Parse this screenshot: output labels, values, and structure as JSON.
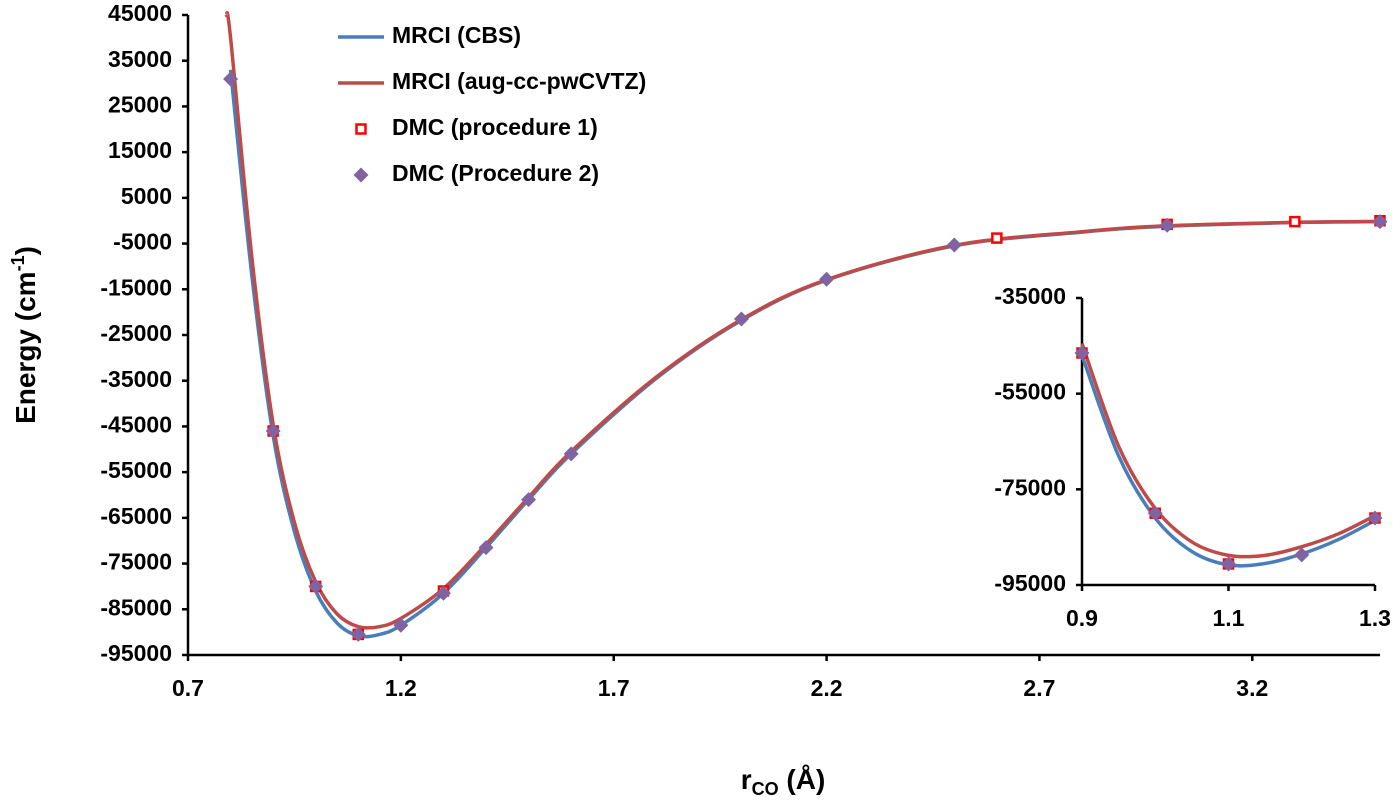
{
  "chart_data": [
    {
      "type": "line",
      "y_label": [
        "Energy (cm",
        "-1",
        ")"
      ],
      "x_label": [
        "r",
        "CO",
        " (Å)"
      ],
      "xlim": [
        0.7,
        3.5
      ],
      "xticks": [
        0.7,
        1.2,
        1.7,
        2.2,
        2.7,
        3.2
      ],
      "ylim": [
        -95000,
        45000
      ],
      "yticks": [
        45000,
        35000,
        25000,
        15000,
        5000,
        -5000,
        -15000,
        -25000,
        -35000,
        -45000,
        -55000,
        -65000,
        -75000,
        -85000,
        -95000
      ],
      "grid": false,
      "legend": "top-left",
      "series": [
        {
          "name": "MRCI (CBS)",
          "color": "#4a7ebb",
          "marker": "line",
          "x": [
            0.8,
            0.85,
            0.9,
            0.95,
            1.0,
            1.05,
            1.1,
            1.15,
            1.2,
            1.3,
            1.4,
            1.5,
            1.6,
            1.8,
            2.0,
            2.2,
            2.5,
            2.8,
            3.0,
            3.3,
            3.5
          ],
          "values": [
            33000,
            -12000,
            -47000,
            -68000,
            -81000,
            -88000,
            -90800,
            -90500,
            -88500,
            -81500,
            -71500,
            -61000,
            -51000,
            -34500,
            -21800,
            -13000,
            -5500,
            -2500,
            -1200,
            -400,
            -200
          ]
        },
        {
          "name": "MRCI (aug-cc-pwCVTZ)",
          "color": "#be4b48",
          "marker": "line",
          "x": [
            0.79,
            0.8,
            0.85,
            0.9,
            0.95,
            1.0,
            1.05,
            1.1,
            1.15,
            1.2,
            1.3,
            1.4,
            1.5,
            1.6,
            1.8,
            2.0,
            2.2,
            2.5,
            2.8,
            3.0,
            3.3,
            3.5
          ],
          "values": [
            45000,
            40000,
            -8000,
            -44500,
            -66000,
            -79000,
            -86000,
            -88800,
            -88800,
            -87000,
            -80500,
            -70800,
            -60500,
            -50500,
            -34200,
            -21600,
            -12900,
            -5400,
            -2400,
            -1100,
            -350,
            -150
          ]
        },
        {
          "name": "DMC (procedure 1)",
          "color": "#ff0000",
          "marker": "square",
          "x": [
            0.9,
            1.0,
            1.1,
            1.3,
            2.6,
            3.0,
            3.3,
            3.5
          ],
          "values": [
            -46000,
            -80000,
            -90500,
            -81000,
            -3800,
            -800,
            -200,
            0
          ]
        },
        {
          "name": "DMC (Procedure 2)",
          "color": "#8064a2",
          "marker": "diamond",
          "x": [
            0.8,
            0.9,
            1.0,
            1.1,
            1.2,
            1.3,
            1.4,
            1.5,
            1.6,
            2.0,
            2.2,
            2.5,
            3.0,
            3.5
          ],
          "values": [
            31000,
            -46000,
            -80000,
            -90500,
            -88500,
            -81500,
            -71500,
            -61000,
            -51000,
            -21500,
            -12800,
            -5300,
            -1000,
            -200
          ]
        }
      ]
    },
    {
      "type": "line",
      "xlim": [
        0.9,
        1.3
      ],
      "xticks": [
        0.9,
        1.1,
        1.3
      ],
      "ylim": [
        -95000,
        -35000
      ],
      "yticks": [
        -35000,
        -55000,
        -75000,
        -95000
      ],
      "grid": false,
      "series": [
        {
          "color": "#4a7ebb",
          "marker": "line",
          "x": [
            0.9,
            0.95,
            1.0,
            1.05,
            1.1,
            1.15,
            1.2,
            1.25,
            1.3
          ],
          "values": [
            -47000,
            -68000,
            -81000,
            -88000,
            -90800,
            -90500,
            -88500,
            -85500,
            -81500
          ]
        },
        {
          "color": "#be4b48",
          "marker": "line",
          "x": [
            0.9,
            0.95,
            1.0,
            1.05,
            1.1,
            1.15,
            1.2,
            1.25,
            1.3
          ],
          "values": [
            -44500,
            -66000,
            -79000,
            -86000,
            -88800,
            -88800,
            -87000,
            -84300,
            -80500
          ]
        },
        {
          "color": "#ff0000",
          "marker": "square",
          "x": [
            0.9,
            1.0,
            1.1,
            1.3
          ],
          "values": [
            -46500,
            -80000,
            -90600,
            -81000
          ]
        },
        {
          "color": "#8064a2",
          "marker": "diamond",
          "x": [
            0.9,
            1.0,
            1.1,
            1.2,
            1.3
          ],
          "values": [
            -46500,
            -80000,
            -90600,
            -88700,
            -81000
          ]
        }
      ]
    }
  ]
}
